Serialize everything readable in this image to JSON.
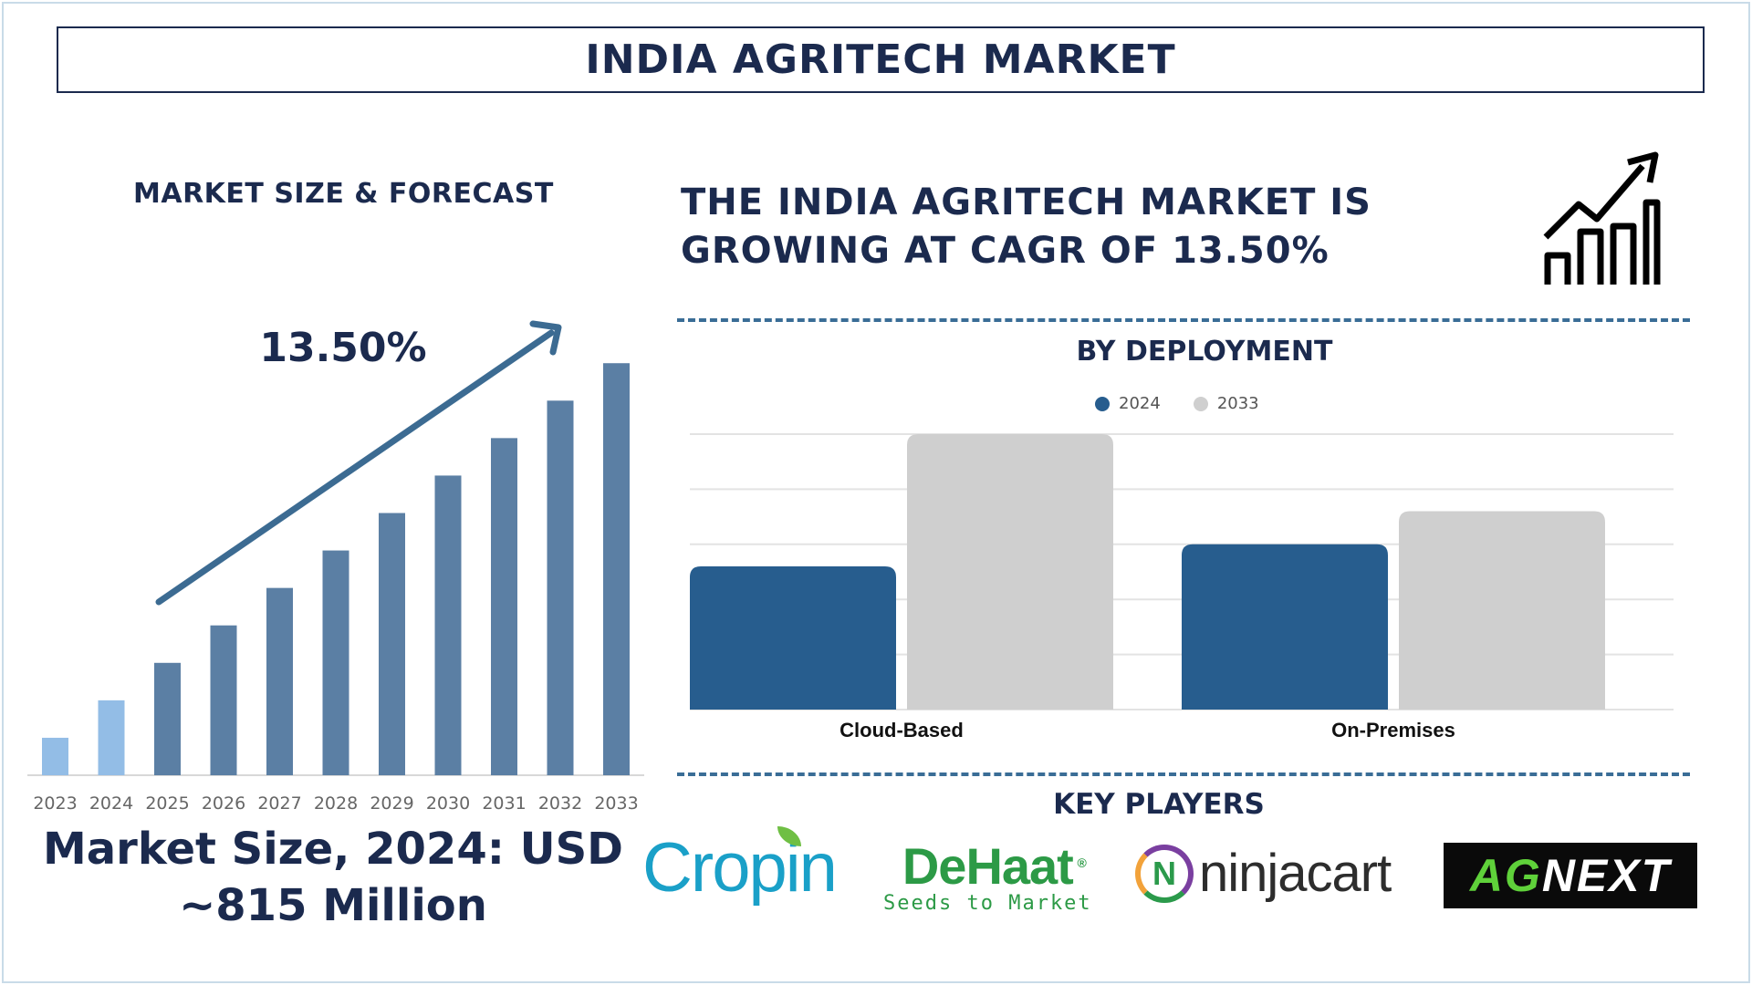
{
  "title": "INDIA AGRITECH MARKET",
  "left_panel": {
    "heading": "MARKET SIZE & FORECAST",
    "cagr_label": "13.50%",
    "market_size_line1": "Market Size, 2024: USD",
    "market_size_line2": "~815 Million"
  },
  "headline": {
    "line1": "THE INDIA AGRITECH MARKET IS",
    "line2": "GROWING AT CAGR OF 13.50%"
  },
  "deployment": {
    "heading": "BY DEPLOYMENT"
  },
  "key_players": {
    "heading": "KEY PLAYERS",
    "logos": {
      "cropin": "Cropin",
      "dehaat": "DeHaat",
      "dehaat_tagline": "Seeds to Market",
      "ninjacart": "ninjacart",
      "agnext_ag": "AG",
      "agnext_next": "NEXT"
    }
  },
  "icons": {
    "growth": "trend-up-bars-icon"
  },
  "colors": {
    "navy": "#1b2a4e",
    "bar_blue": "#5b7fa4",
    "bar_light": "#93bde6",
    "series_2024": "#275d8e",
    "series_2033": "#cfcfcf",
    "arrow": "#3c6b92"
  },
  "chart_data": [
    {
      "type": "bar",
      "categories": [
        "2023",
        "2024",
        "2025",
        "2026",
        "2027",
        "2028",
        "2029",
        "2030",
        "2031",
        "2032",
        "2033"
      ],
      "values": [
        1.0,
        2.0,
        3.0,
        4.0,
        5.0,
        6.0,
        7.0,
        8.0,
        9.0,
        10.0,
        11.0
      ],
      "highlighted": [
        "2023",
        "2024"
      ],
      "ylim": [
        0,
        11.2
      ],
      "grid": false,
      "annotation": "13.50%"
    },
    {
      "type": "bar",
      "categories": [
        "Cloud-Based",
        "On-Premises"
      ],
      "series": [
        {
          "name": "2024",
          "values": [
            2.6,
            3.0
          ]
        },
        {
          "name": "2033",
          "values": [
            5.0,
            3.6
          ]
        }
      ],
      "ylim": [
        0,
        5.0
      ],
      "grid": true,
      "legend": "top"
    }
  ]
}
